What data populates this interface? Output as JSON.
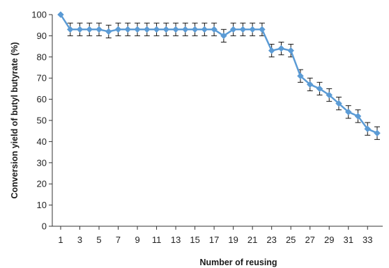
{
  "chart_data": {
    "type": "line",
    "xlabel": "Number of reusing",
    "ylabel": "Conversion yield of butyl butyrate (%)",
    "xlim": [
      1,
      34
    ],
    "ylim": [
      0,
      100
    ],
    "x_tick_labels": [
      "1",
      "3",
      "5",
      "7",
      "9",
      "11",
      "13",
      "15",
      "17",
      "19",
      "21",
      "23",
      "25",
      "27",
      "29",
      "31",
      "33"
    ],
    "y_tick_labels": [
      "0",
      "10",
      "20",
      "30",
      "40",
      "50",
      "60",
      "70",
      "80",
      "90",
      "100"
    ],
    "grid": false,
    "legend": "none",
    "series": [
      {
        "color": "#5b9bd5",
        "marker": "diamond",
        "x": [
          1,
          2,
          3,
          4,
          5,
          6,
          7,
          8,
          9,
          10,
          11,
          12,
          13,
          14,
          15,
          16,
          17,
          18,
          19,
          20,
          21,
          22,
          23,
          24,
          25,
          26,
          27,
          28,
          29,
          30,
          31,
          32,
          33,
          34
        ],
        "y": [
          100,
          93,
          93,
          93,
          93,
          92,
          93,
          93,
          93,
          93,
          93,
          93,
          93,
          93,
          93,
          93,
          93,
          90,
          93,
          93,
          93,
          93,
          83,
          84,
          83,
          71,
          67,
          65,
          62,
          58,
          54,
          52,
          46,
          44
        ],
        "error": [
          0,
          3,
          3,
          3,
          3,
          3,
          3,
          3,
          3,
          3,
          3,
          3,
          3,
          3,
          3,
          3,
          3,
          3,
          3,
          3,
          3,
          3,
          3,
          3,
          3,
          3,
          3,
          3,
          3,
          3,
          3,
          3,
          3,
          3
        ]
      }
    ]
  }
}
